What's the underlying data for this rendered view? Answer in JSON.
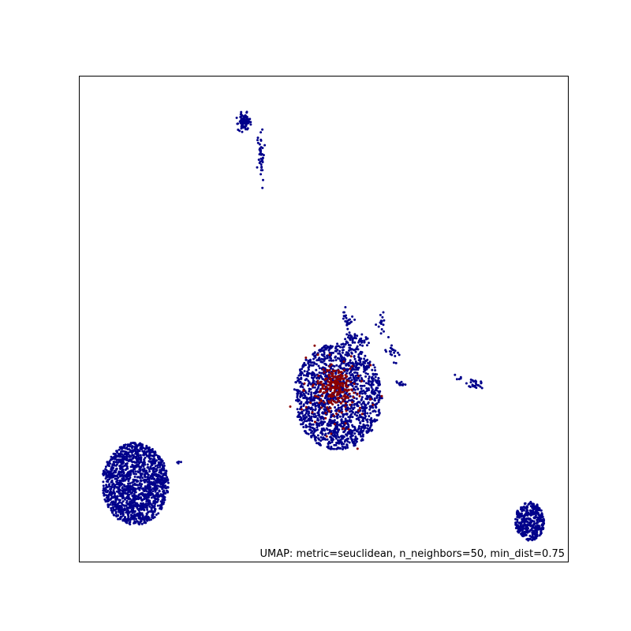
{
  "chart_data": {
    "type": "scatter",
    "title": "",
    "xlabel": "",
    "ylabel": "",
    "xticks": [],
    "yticks": [],
    "xlim": [
      0,
      100
    ],
    "ylim": [
      0,
      100
    ],
    "grid": false,
    "legend": "none",
    "annotation": "UMAP: metric=seuclidean, n_neighbors=50, min_dist=0.75",
    "annotation_position": "bottom-right",
    "colors": {
      "majority": "#00008b",
      "minority": "#8b0000"
    },
    "series": [
      {
        "color": "#00008b",
        "clusters": [
          {
            "shape": "ellipse",
            "center": [
              11.5,
              16.0
            ],
            "spread": [
              6.8,
              8.5
            ],
            "count": 1500
          },
          {
            "shape": "ellipse",
            "center": [
              33.8,
              90.5
            ],
            "spread": [
              1.0,
              1.4
            ],
            "count": 90
          },
          {
            "shape": "stretched",
            "center": [
              37.2,
              84.0
            ],
            "spread": [
              0.6,
              4.5
            ],
            "count": 40
          },
          {
            "shape": "ellipse",
            "center": [
              53.0,
              34.0
            ],
            "spread": [
              9.0,
              11.0
            ],
            "count": 1500
          },
          {
            "shape": "ellipse",
            "center": [
              55.0,
              49.8
            ],
            "spread": [
              0.9,
              1.8
            ],
            "count": 25
          },
          {
            "shape": "ellipse",
            "center": [
              55.5,
              46.0
            ],
            "spread": [
              1.2,
              0.8
            ],
            "count": 25
          },
          {
            "shape": "ellipse",
            "center": [
              58.0,
              45.5
            ],
            "spread": [
              1.0,
              1.2
            ],
            "count": 20
          },
          {
            "shape": "ellipse",
            "center": [
              62.0,
              49.0
            ],
            "spread": [
              0.7,
              1.6
            ],
            "count": 15
          },
          {
            "shape": "ellipse",
            "center": [
              64.0,
              43.5
            ],
            "spread": [
              1.0,
              1.8
            ],
            "count": 20
          },
          {
            "shape": "ellipse",
            "center": [
              65.8,
              36.6
            ],
            "spread": [
              0.9,
              0.5
            ],
            "count": 12
          },
          {
            "shape": "ellipse",
            "center": [
              81.0,
              36.5
            ],
            "spread": [
              1.4,
              0.9
            ],
            "count": 25
          },
          {
            "shape": "ellipse",
            "center": [
              77.5,
              38.0
            ],
            "spread": [
              0.8,
              0.5
            ],
            "count": 5
          },
          {
            "shape": "ellipse",
            "center": [
              92.2,
              8.3
            ],
            "spread": [
              3.0,
              4.0
            ],
            "count": 380
          },
          {
            "shape": "ellipse",
            "center": [
              20.5,
              20.5
            ],
            "spread": [
              0.5,
              1.0
            ],
            "count": 4
          }
        ]
      },
      {
        "color": "#8b0000",
        "clusters": [
          {
            "shape": "ellipse",
            "center": [
              52.5,
              36.0
            ],
            "spread": [
              3.2,
              3.2
            ],
            "count": 200
          },
          {
            "shape": "ellipse",
            "center": [
              53.0,
              34.0
            ],
            "spread": [
              7.0,
              9.0
            ],
            "count": 60
          }
        ]
      }
    ]
  }
}
